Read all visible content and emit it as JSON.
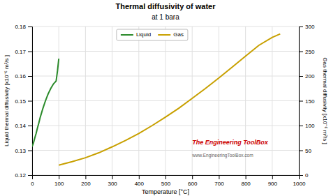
{
  "chart_data": {
    "type": "line",
    "title": "Thermal diffusivity of water",
    "subtitle": "at 1 bara",
    "xlabel": "Temperature  [°C]",
    "ylabel": "Liquid thermal diffusivity  [x10⁻⁶ m²/s ]",
    "y2label": "Gas thermal diffusivity  [x10⁻⁶ m²/s ]",
    "series": [
      {
        "name": "Liquid",
        "color": "#2a8a2a",
        "x": [
          0,
          5,
          10,
          15,
          20,
          25,
          30,
          40,
          50,
          60,
          70,
          80,
          90,
          95,
          100
        ],
        "values": [
          0.1315,
          0.133,
          0.135,
          0.1368,
          0.139,
          0.141,
          0.1432,
          0.1468,
          0.15,
          0.1528,
          0.155,
          0.1568,
          0.158,
          0.162,
          0.167
        ]
      },
      {
        "name": "Gas",
        "color": "#c8a000",
        "axis": "y2",
        "x": [
          100,
          150,
          200,
          250,
          300,
          350,
          400,
          450,
          500,
          550,
          600,
          650,
          700,
          750,
          800,
          850,
          900,
          930
        ],
        "values": [
          20,
          27,
          35,
          45,
          57,
          70,
          84,
          100,
          117,
          135,
          155,
          175,
          196,
          218,
          240,
          262,
          278,
          285
        ]
      }
    ],
    "xlim": [
      0,
      1000
    ],
    "xticks": [
      0,
      100,
      200,
      300,
      400,
      500,
      600,
      700,
      800,
      900,
      1000
    ],
    "ylim": [
      0.12,
      0.18
    ],
    "yticks": [
      0.12,
      0.13,
      0.14,
      0.15,
      0.16,
      0.17,
      0.18
    ],
    "y2lim": [
      0,
      300
    ],
    "y2ticks": [
      0,
      50,
      100,
      150,
      200,
      250,
      300
    ],
    "grid": true,
    "legend": "top",
    "annotations": [
      {
        "text": "The Engineering ToolBox",
        "color": "#cc0000"
      },
      {
        "text": "www.EngineeringToolBox.com",
        "color": "#666666"
      }
    ]
  }
}
